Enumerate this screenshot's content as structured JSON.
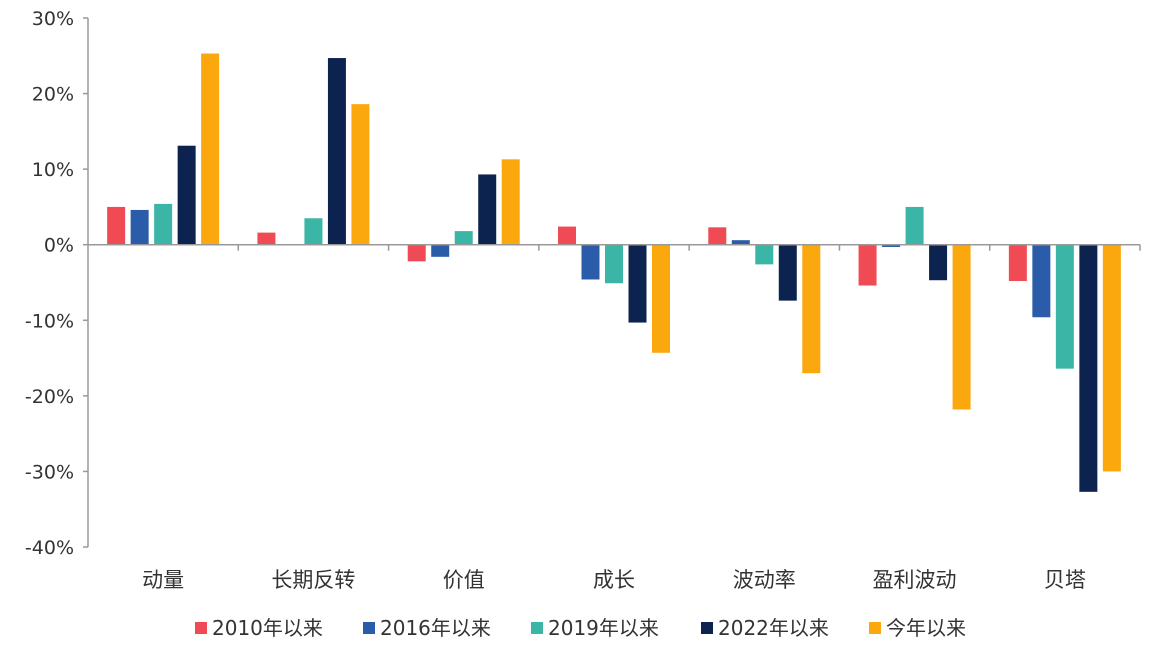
{
  "chart_data": {
    "type": "bar",
    "categories": [
      "动量",
      "长期反转",
      "价值",
      "成长",
      "波动率",
      "盈利波动",
      "贝塔"
    ],
    "series": [
      {
        "name": "2010年以来",
        "color": "#f04b55",
        "values": [
          5.0,
          1.6,
          -2.2,
          2.4,
          2.3,
          -5.4,
          -4.8
        ]
      },
      {
        "name": "2016年以来",
        "color": "#2a5caa",
        "values": [
          4.6,
          0.0,
          -1.6,
          -4.6,
          0.6,
          -0.3,
          -9.6
        ]
      },
      {
        "name": "2019年以来",
        "color": "#3ab5a6",
        "values": [
          5.4,
          3.5,
          1.8,
          -5.1,
          -2.6,
          5.0,
          -16.4
        ]
      },
      {
        "name": "2022年以来",
        "color": "#0c2350",
        "values": [
          13.1,
          24.7,
          9.3,
          -10.3,
          -7.4,
          -4.7,
          -32.7
        ]
      },
      {
        "name": "今年以来",
        "color": "#fba70e",
        "values": [
          25.3,
          18.6,
          11.3,
          -14.3,
          -17.0,
          -21.8,
          -30.0
        ]
      }
    ],
    "yticks": [
      "30%",
      "20%",
      "10%",
      "0%",
      "-10%",
      "-20%",
      "-30%",
      "-40%"
    ],
    "ylim": [
      -40,
      30
    ],
    "legend": "bottom"
  }
}
